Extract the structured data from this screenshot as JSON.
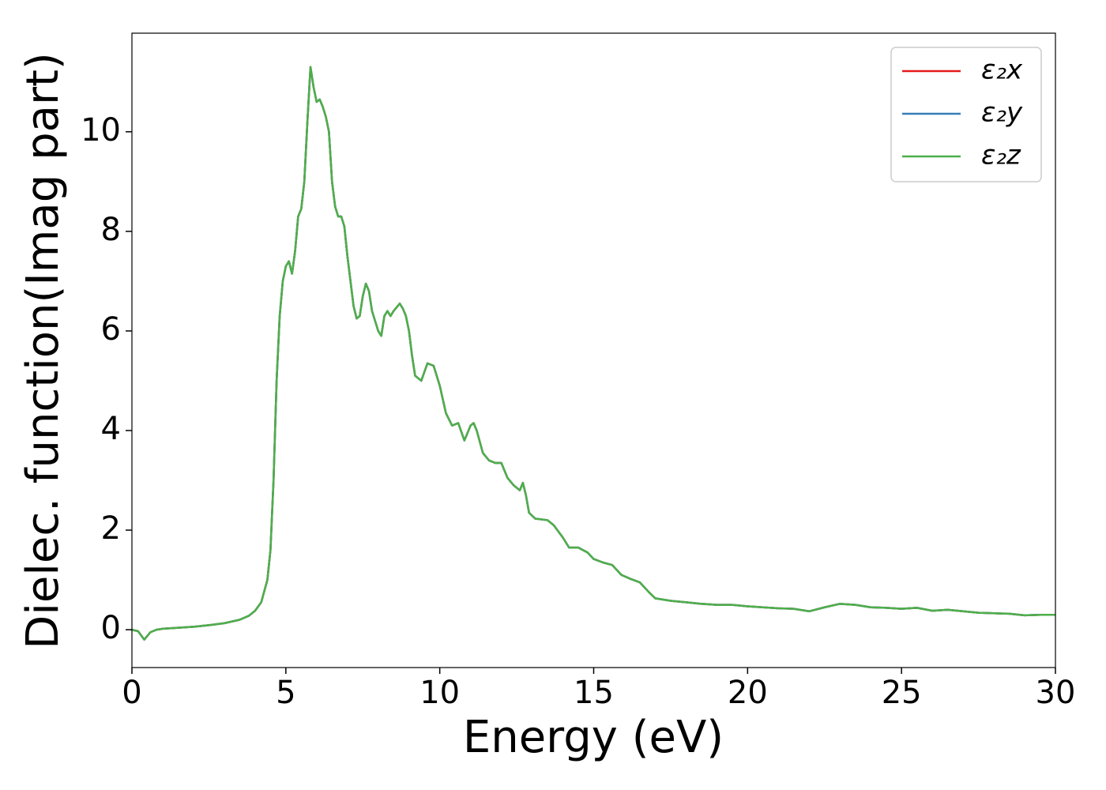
{
  "chart_data": {
    "type": "line",
    "xlabel": "Energy (eV)",
    "ylabel": "Dielec. function(Imag part)",
    "xlim": [
      0,
      30
    ],
    "ylim": [
      -0.76,
      11.98
    ],
    "xticks": [
      0,
      5,
      10,
      15,
      20,
      25,
      30
    ],
    "yticks": [
      0,
      2,
      4,
      6,
      8,
      10
    ],
    "legend": "upper right",
    "x": [
      0,
      0.2,
      0.4,
      0.6,
      0.8,
      1,
      1.5,
      2,
      2.5,
      3,
      3.5,
      3.8,
      4,
      4.2,
      4.4,
      4.5,
      4.6,
      4.7,
      4.8,
      4.9,
      5.0,
      5.1,
      5.2,
      5.3,
      5.4,
      5.5,
      5.6,
      5.7,
      5.8,
      5.9,
      6.0,
      6.1,
      6.2,
      6.3,
      6.4,
      6.5,
      6.6,
      6.7,
      6.8,
      6.9,
      7.0,
      7.1,
      7.2,
      7.3,
      7.4,
      7.5,
      7.6,
      7.7,
      7.8,
      7.9,
      8.0,
      8.1,
      8.2,
      8.3,
      8.4,
      8.5,
      8.7,
      8.8,
      8.9,
      9.0,
      9.1,
      9.2,
      9.4,
      9.6,
      9.8,
      10.0,
      10.2,
      10.4,
      10.6,
      10.8,
      11.0,
      11.1,
      11.2,
      11.4,
      11.6,
      11.8,
      12.0,
      12.2,
      12.4,
      12.6,
      12.7,
      12.8,
      12.9,
      13.1,
      13.5,
      13.7,
      14.0,
      14.2,
      14.5,
      14.8,
      15.0,
      15.3,
      15.6,
      15.9,
      16.2,
      16.5,
      16.8,
      17.0,
      17.5,
      18.0,
      18.5,
      19.0,
      19.5,
      20,
      21,
      21.5,
      22,
      22.5,
      23,
      23.5,
      24,
      24.5,
      25,
      25.5,
      26,
      26.5,
      27,
      27.5,
      28,
      28.5,
      29,
      29.5,
      30
    ],
    "series": [
      {
        "name": "ε₂x",
        "color": "#e41a1c",
        "values": [
          0,
          -0.03,
          -0.2,
          -0.05,
          0,
          0.02,
          0.04,
          0.06,
          0.09,
          0.13,
          0.2,
          0.28,
          0.38,
          0.55,
          1.0,
          1.6,
          3.0,
          5.0,
          6.3,
          7.0,
          7.3,
          7.4,
          7.15,
          7.6,
          8.3,
          8.45,
          9.0,
          10.2,
          11.3,
          10.9,
          10.6,
          10.65,
          10.5,
          10.3,
          10.0,
          9.0,
          8.5,
          8.3,
          8.3,
          8.1,
          7.5,
          7.0,
          6.5,
          6.25,
          6.3,
          6.7,
          6.95,
          6.8,
          6.4,
          6.2,
          6.0,
          5.9,
          6.3,
          6.4,
          6.3,
          6.4,
          6.55,
          6.45,
          6.3,
          6.0,
          5.5,
          5.1,
          5.0,
          5.35,
          5.3,
          4.9,
          4.35,
          4.1,
          4.15,
          3.8,
          4.1,
          4.15,
          4.0,
          3.55,
          3.4,
          3.35,
          3.35,
          3.05,
          2.9,
          2.8,
          2.95,
          2.7,
          2.35,
          2.23,
          2.2,
          2.1,
          1.85,
          1.65,
          1.65,
          1.55,
          1.42,
          1.35,
          1.3,
          1.1,
          1.02,
          0.95,
          0.75,
          0.63,
          0.58,
          0.55,
          0.52,
          0.5,
          0.5,
          0.47,
          0.43,
          0.42,
          0.37,
          0.45,
          0.52,
          0.5,
          0.45,
          0.44,
          0.42,
          0.44,
          0.38,
          0.4,
          0.37,
          0.34,
          0.33,
          0.32,
          0.29,
          0.3,
          0.3
        ]
      },
      {
        "name": "ε₂y",
        "color": "#377eb8",
        "values": [
          0,
          -0.03,
          -0.2,
          -0.05,
          0,
          0.02,
          0.04,
          0.06,
          0.09,
          0.13,
          0.2,
          0.28,
          0.38,
          0.55,
          1.0,
          1.6,
          3.0,
          5.0,
          6.3,
          7.0,
          7.3,
          7.4,
          7.15,
          7.6,
          8.3,
          8.45,
          9.0,
          10.2,
          11.3,
          10.9,
          10.6,
          10.65,
          10.5,
          10.3,
          10.0,
          9.0,
          8.5,
          8.3,
          8.3,
          8.1,
          7.5,
          7.0,
          6.5,
          6.25,
          6.3,
          6.7,
          6.95,
          6.8,
          6.4,
          6.2,
          6.0,
          5.9,
          6.3,
          6.4,
          6.3,
          6.4,
          6.55,
          6.45,
          6.3,
          6.0,
          5.5,
          5.1,
          5.0,
          5.35,
          5.3,
          4.9,
          4.35,
          4.1,
          4.15,
          3.8,
          4.1,
          4.15,
          4.0,
          3.55,
          3.4,
          3.35,
          3.35,
          3.05,
          2.9,
          2.8,
          2.95,
          2.7,
          2.35,
          2.23,
          2.2,
          2.1,
          1.85,
          1.65,
          1.65,
          1.55,
          1.42,
          1.35,
          1.3,
          1.1,
          1.02,
          0.95,
          0.75,
          0.63,
          0.58,
          0.55,
          0.52,
          0.5,
          0.5,
          0.47,
          0.43,
          0.42,
          0.37,
          0.45,
          0.52,
          0.5,
          0.45,
          0.44,
          0.42,
          0.44,
          0.38,
          0.4,
          0.37,
          0.34,
          0.33,
          0.32,
          0.29,
          0.3,
          0.3
        ]
      },
      {
        "name": "ε₂z",
        "color": "#4daf4a",
        "values": [
          0,
          -0.03,
          -0.2,
          -0.05,
          0,
          0.02,
          0.04,
          0.06,
          0.09,
          0.13,
          0.2,
          0.28,
          0.38,
          0.55,
          1.0,
          1.6,
          3.0,
          5.0,
          6.3,
          7.0,
          7.3,
          7.4,
          7.15,
          7.6,
          8.3,
          8.45,
          9.0,
          10.2,
          11.3,
          10.9,
          10.6,
          10.65,
          10.5,
          10.3,
          10.0,
          9.0,
          8.5,
          8.3,
          8.3,
          8.1,
          7.5,
          7.0,
          6.5,
          6.25,
          6.3,
          6.7,
          6.95,
          6.8,
          6.4,
          6.2,
          6.0,
          5.9,
          6.3,
          6.4,
          6.3,
          6.4,
          6.55,
          6.45,
          6.3,
          6.0,
          5.5,
          5.1,
          5.0,
          5.35,
          5.3,
          4.9,
          4.35,
          4.1,
          4.15,
          3.8,
          4.1,
          4.15,
          4.0,
          3.55,
          3.4,
          3.35,
          3.35,
          3.05,
          2.9,
          2.8,
          2.95,
          2.7,
          2.35,
          2.23,
          2.2,
          2.1,
          1.85,
          1.65,
          1.65,
          1.55,
          1.42,
          1.35,
          1.3,
          1.1,
          1.02,
          0.95,
          0.75,
          0.63,
          0.58,
          0.55,
          0.52,
          0.5,
          0.5,
          0.47,
          0.43,
          0.42,
          0.37,
          0.45,
          0.52,
          0.5,
          0.45,
          0.44,
          0.42,
          0.44,
          0.38,
          0.4,
          0.37,
          0.34,
          0.33,
          0.32,
          0.29,
          0.3,
          0.3
        ]
      }
    ]
  }
}
